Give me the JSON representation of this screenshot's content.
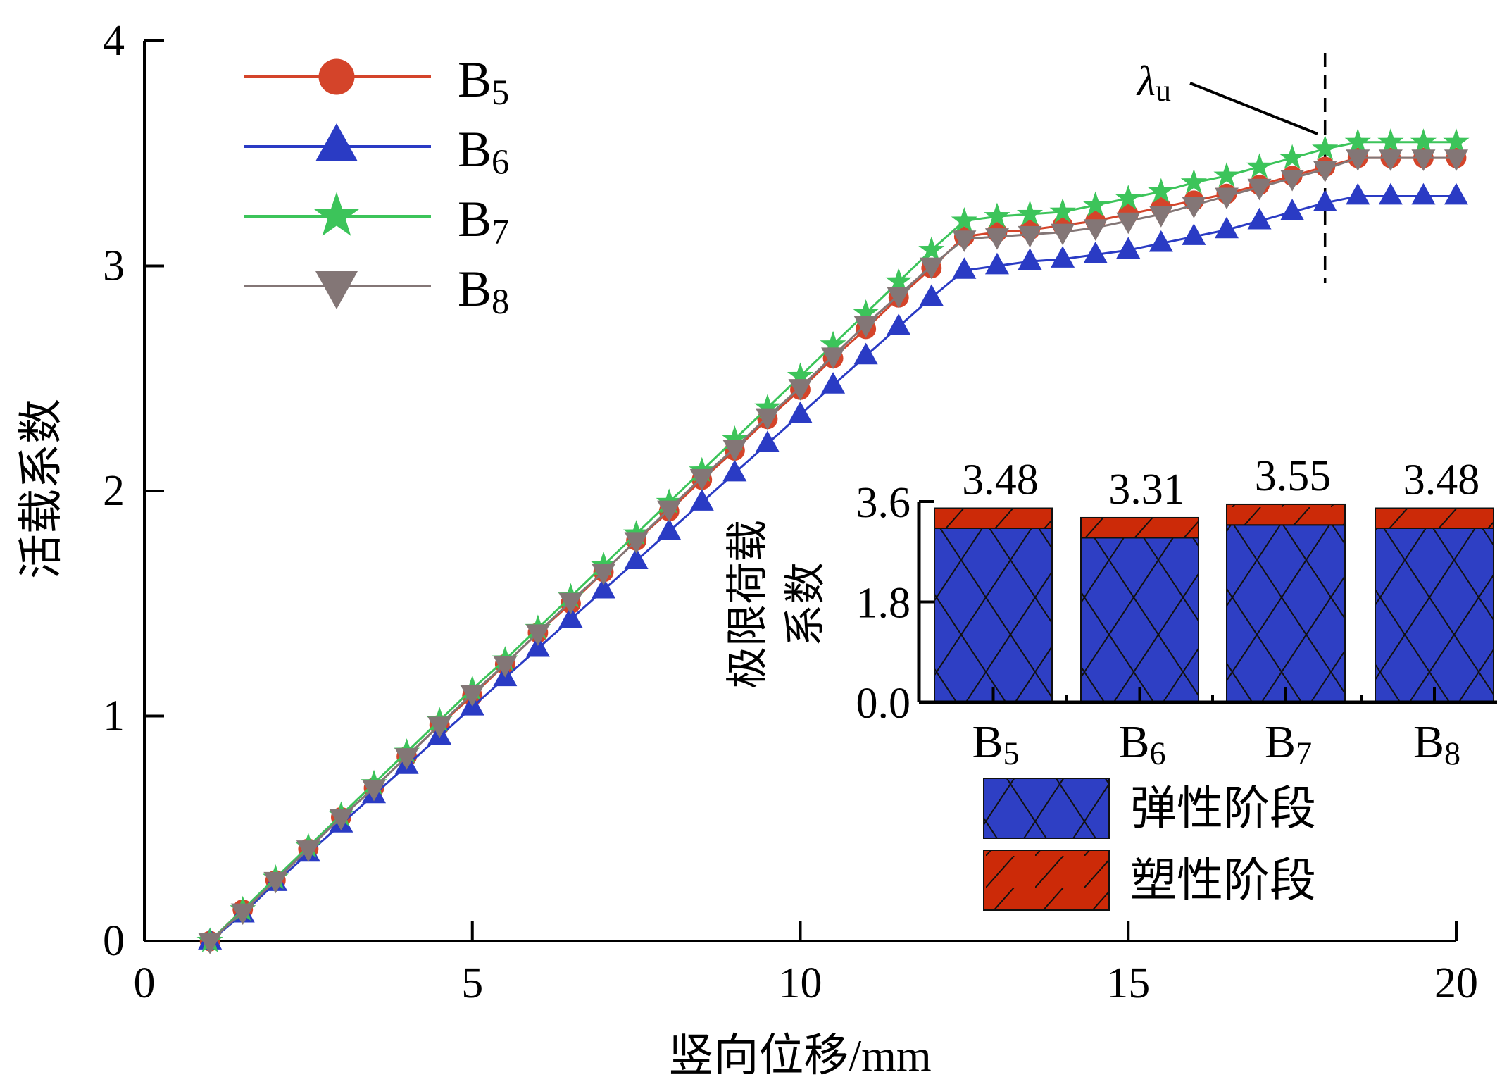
{
  "chart_data": [
    {
      "type": "line",
      "xlabel": "竖向位移/mm",
      "ylabel": "活载系数",
      "xlim": [
        0,
        20
      ],
      "ylim": [
        0,
        4
      ],
      "xticks": [
        "0",
        "5",
        "10",
        "15",
        "20"
      ],
      "yticks": [
        "0",
        "1",
        "2",
        "3",
        "4"
      ],
      "grid": false,
      "legend_placement": "top-left",
      "x": [
        1,
        1.5,
        2,
        2.5,
        3,
        3.5,
        4,
        4.5,
        5,
        5.5,
        6,
        6.5,
        7,
        7.5,
        8,
        8.5,
        9,
        9.5,
        10,
        10.5,
        11,
        11.5,
        12,
        12.5,
        13,
        13.5,
        14,
        14.5,
        15,
        15.5,
        16,
        16.5,
        17,
        17.5,
        18,
        18.5,
        19,
        19.5,
        20
      ],
      "series": [
        {
          "name": "B",
          "sub": "5",
          "color": "#d4442a",
          "marker": "circle",
          "values": [
            0,
            0.14,
            0.27,
            0.41,
            0.55,
            0.68,
            0.82,
            0.96,
            1.09,
            1.23,
            1.37,
            1.5,
            1.64,
            1.78,
            1.91,
            2.05,
            2.18,
            2.32,
            2.45,
            2.59,
            2.72,
            2.86,
            2.99,
            3.13,
            3.15,
            3.16,
            3.18,
            3.2,
            3.23,
            3.26,
            3.29,
            3.32,
            3.36,
            3.4,
            3.44,
            3.48,
            3.48,
            3.48,
            3.48
          ]
        },
        {
          "name": "B",
          "sub": "6",
          "color": "#2a3bc4",
          "marker": "triangle-up",
          "values": [
            0,
            0.12,
            0.26,
            0.39,
            0.52,
            0.65,
            0.78,
            0.91,
            1.04,
            1.17,
            1.3,
            1.43,
            1.56,
            1.69,
            1.82,
            1.95,
            2.08,
            2.21,
            2.34,
            2.47,
            2.6,
            2.73,
            2.86,
            2.98,
            3.0,
            3.02,
            3.03,
            3.05,
            3.07,
            3.1,
            3.13,
            3.16,
            3.2,
            3.24,
            3.28,
            3.31,
            3.31,
            3.31,
            3.31
          ]
        },
        {
          "name": "B",
          "sub": "7",
          "color": "#3cc45a",
          "marker": "star",
          "values": [
            0,
            0.14,
            0.28,
            0.42,
            0.56,
            0.7,
            0.84,
            0.98,
            1.12,
            1.25,
            1.39,
            1.53,
            1.67,
            1.81,
            1.95,
            2.09,
            2.23,
            2.37,
            2.51,
            2.65,
            2.79,
            2.93,
            3.07,
            3.2,
            3.22,
            3.23,
            3.24,
            3.27,
            3.3,
            3.33,
            3.37,
            3.4,
            3.44,
            3.48,
            3.52,
            3.55,
            3.55,
            3.55,
            3.55
          ]
        },
        {
          "name": "B",
          "sub": "8",
          "color": "#837676",
          "marker": "triangle-down",
          "values": [
            0,
            0.13,
            0.27,
            0.41,
            0.55,
            0.68,
            0.82,
            0.96,
            1.1,
            1.23,
            1.37,
            1.51,
            1.64,
            1.78,
            1.92,
            2.06,
            2.19,
            2.33,
            2.46,
            2.6,
            2.74,
            2.87,
            3.0,
            3.12,
            3.13,
            3.14,
            3.15,
            3.17,
            3.2,
            3.23,
            3.27,
            3.31,
            3.35,
            3.39,
            3.43,
            3.48,
            3.48,
            3.48,
            3.48
          ]
        }
      ],
      "annotation": {
        "symbol": "λ",
        "sub": "u",
        "x": 18
      }
    },
    {
      "type": "bar",
      "stacked": true,
      "ylabel_line1": "极限荷载",
      "ylabel_line2": "系数",
      "ylim": [
        0,
        3.6
      ],
      "yticks": [
        "0.0",
        "1.8",
        "3.6"
      ],
      "categories": [
        {
          "name": "B",
          "sub": "5"
        },
        {
          "name": "B",
          "sub": "6"
        },
        {
          "name": "B",
          "sub": "7"
        },
        {
          "name": "B",
          "sub": "8"
        }
      ],
      "totals": [
        "3.48",
        "3.31",
        "3.55",
        "3.48"
      ],
      "series": [
        {
          "name": "弹性阶段",
          "color": "#2e3fc4",
          "hatch": "crosshatch",
          "values": [
            3.12,
            2.95,
            3.18,
            3.12
          ]
        },
        {
          "name": "塑性阶段",
          "color": "#cc2a08",
          "hatch": "diagonal",
          "values": [
            0.36,
            0.36,
            0.37,
            0.36
          ]
        }
      ]
    }
  ]
}
